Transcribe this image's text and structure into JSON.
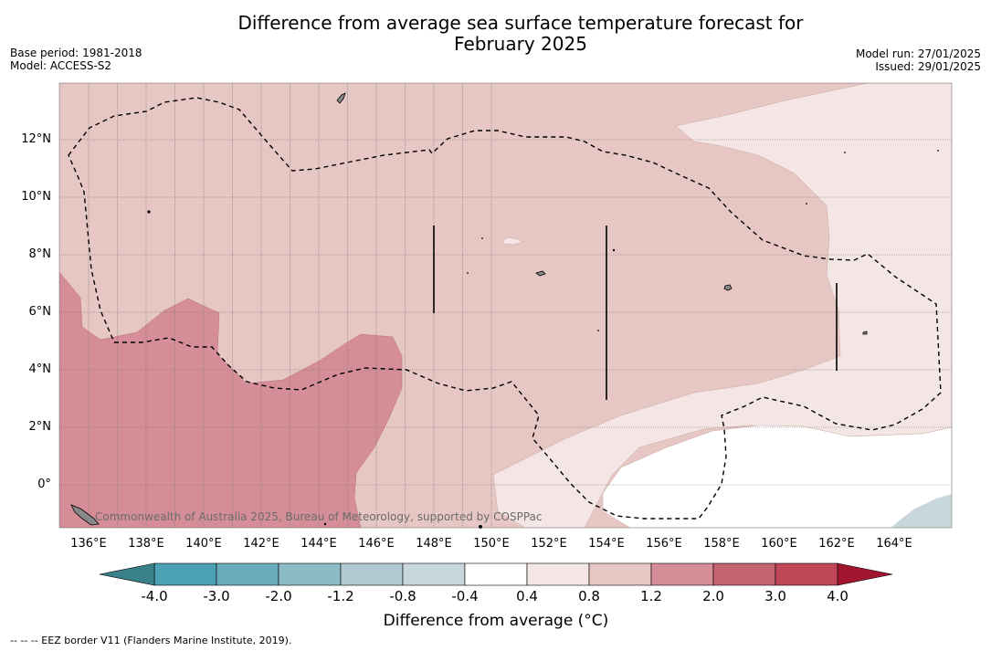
{
  "header": {
    "title_line1": "Difference from average sea surface temperature forecast for",
    "title_line2": "February 2025",
    "base_period": "Base period: 1981-2018",
    "model": "Model: ACCESS-S2",
    "model_run": "Model run: 27/01/2025",
    "issued": "Issued: 29/01/2025"
  },
  "map": {
    "lat_labels": [
      "12°N",
      "10°N",
      "8°N",
      "6°N",
      "4°N",
      "2°N",
      "0°"
    ],
    "lon_labels": [
      "136°E",
      "138°E",
      "140°E",
      "142°E",
      "144°E",
      "146°E",
      "148°E",
      "150°E",
      "152°E",
      "154°E",
      "156°E",
      "158°E",
      "160°E",
      "162°E",
      "164°E"
    ],
    "credit": "Commonwealth of Australia 2025, Bureau of Meteorology, supported by COSPPac",
    "colors": {
      "anom_0p8_1p2": "#e7c7c3",
      "anom_1p2_2p0": "#d58e97",
      "anom_0p4_0p8": "#f4e6e4",
      "anom_neg0p4_0p4": "#ffffff",
      "anom_neg1p2_neg0p8": "#c8d7dc"
    }
  },
  "colorbar": {
    "ticks": [
      "-4.0",
      "-3.0",
      "-2.0",
      "-1.2",
      "-0.8",
      "-0.4",
      "0.4",
      "0.8",
      "1.2",
      "2.0",
      "3.0",
      "4.0"
    ],
    "colors": [
      "#4aa1b3",
      "#6aacbb",
      "#8cbbc6",
      "#aecad0",
      "#c8d7dc",
      "#ffffff",
      "#f4e6e4",
      "#e7c7c3",
      "#d58e97",
      "#c66370",
      "#bf4757"
    ],
    "under_color": "#3a8088",
    "over_color": "#a2152f",
    "label": "Difference from average (°C)"
  },
  "footnote": "--  --  -- EEZ border V11 (Flanders Marine Institute, 2019)."
}
